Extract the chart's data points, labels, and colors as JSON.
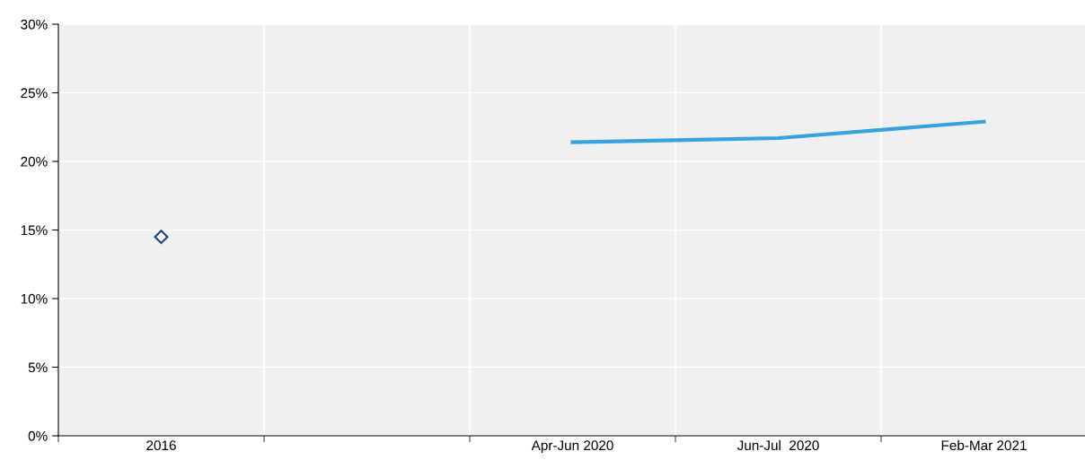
{
  "chart_data": {
    "type": "line",
    "categories": [
      "2016",
      null,
      "Apr-Jun 2020",
      "Jun-Jul  2020",
      "Feb-Mar 2021"
    ],
    "series": [
      {
        "type": "scatter",
        "color": "#1f3f7f",
        "marker": "diamond",
        "values": [
          14.5,
          null,
          null,
          null,
          null
        ]
      },
      {
        "color": "#36a2de",
        "marker": "none",
        "values": [
          null,
          null,
          21.4,
          21.7,
          22.9
        ]
      }
    ],
    "ylim": [
      0,
      30
    ],
    "yticks": [
      {
        "value": 0,
        "label": "0%"
      },
      {
        "value": 5,
        "label": "5%"
      },
      {
        "value": 10,
        "label": "10%"
      },
      {
        "value": 15,
        "label": "15%"
      },
      {
        "value": 20,
        "label": "20%"
      },
      {
        "value": 25,
        "label": "25%"
      },
      {
        "value": 30,
        "label": "30%"
      }
    ],
    "grid": true,
    "legend": false
  }
}
